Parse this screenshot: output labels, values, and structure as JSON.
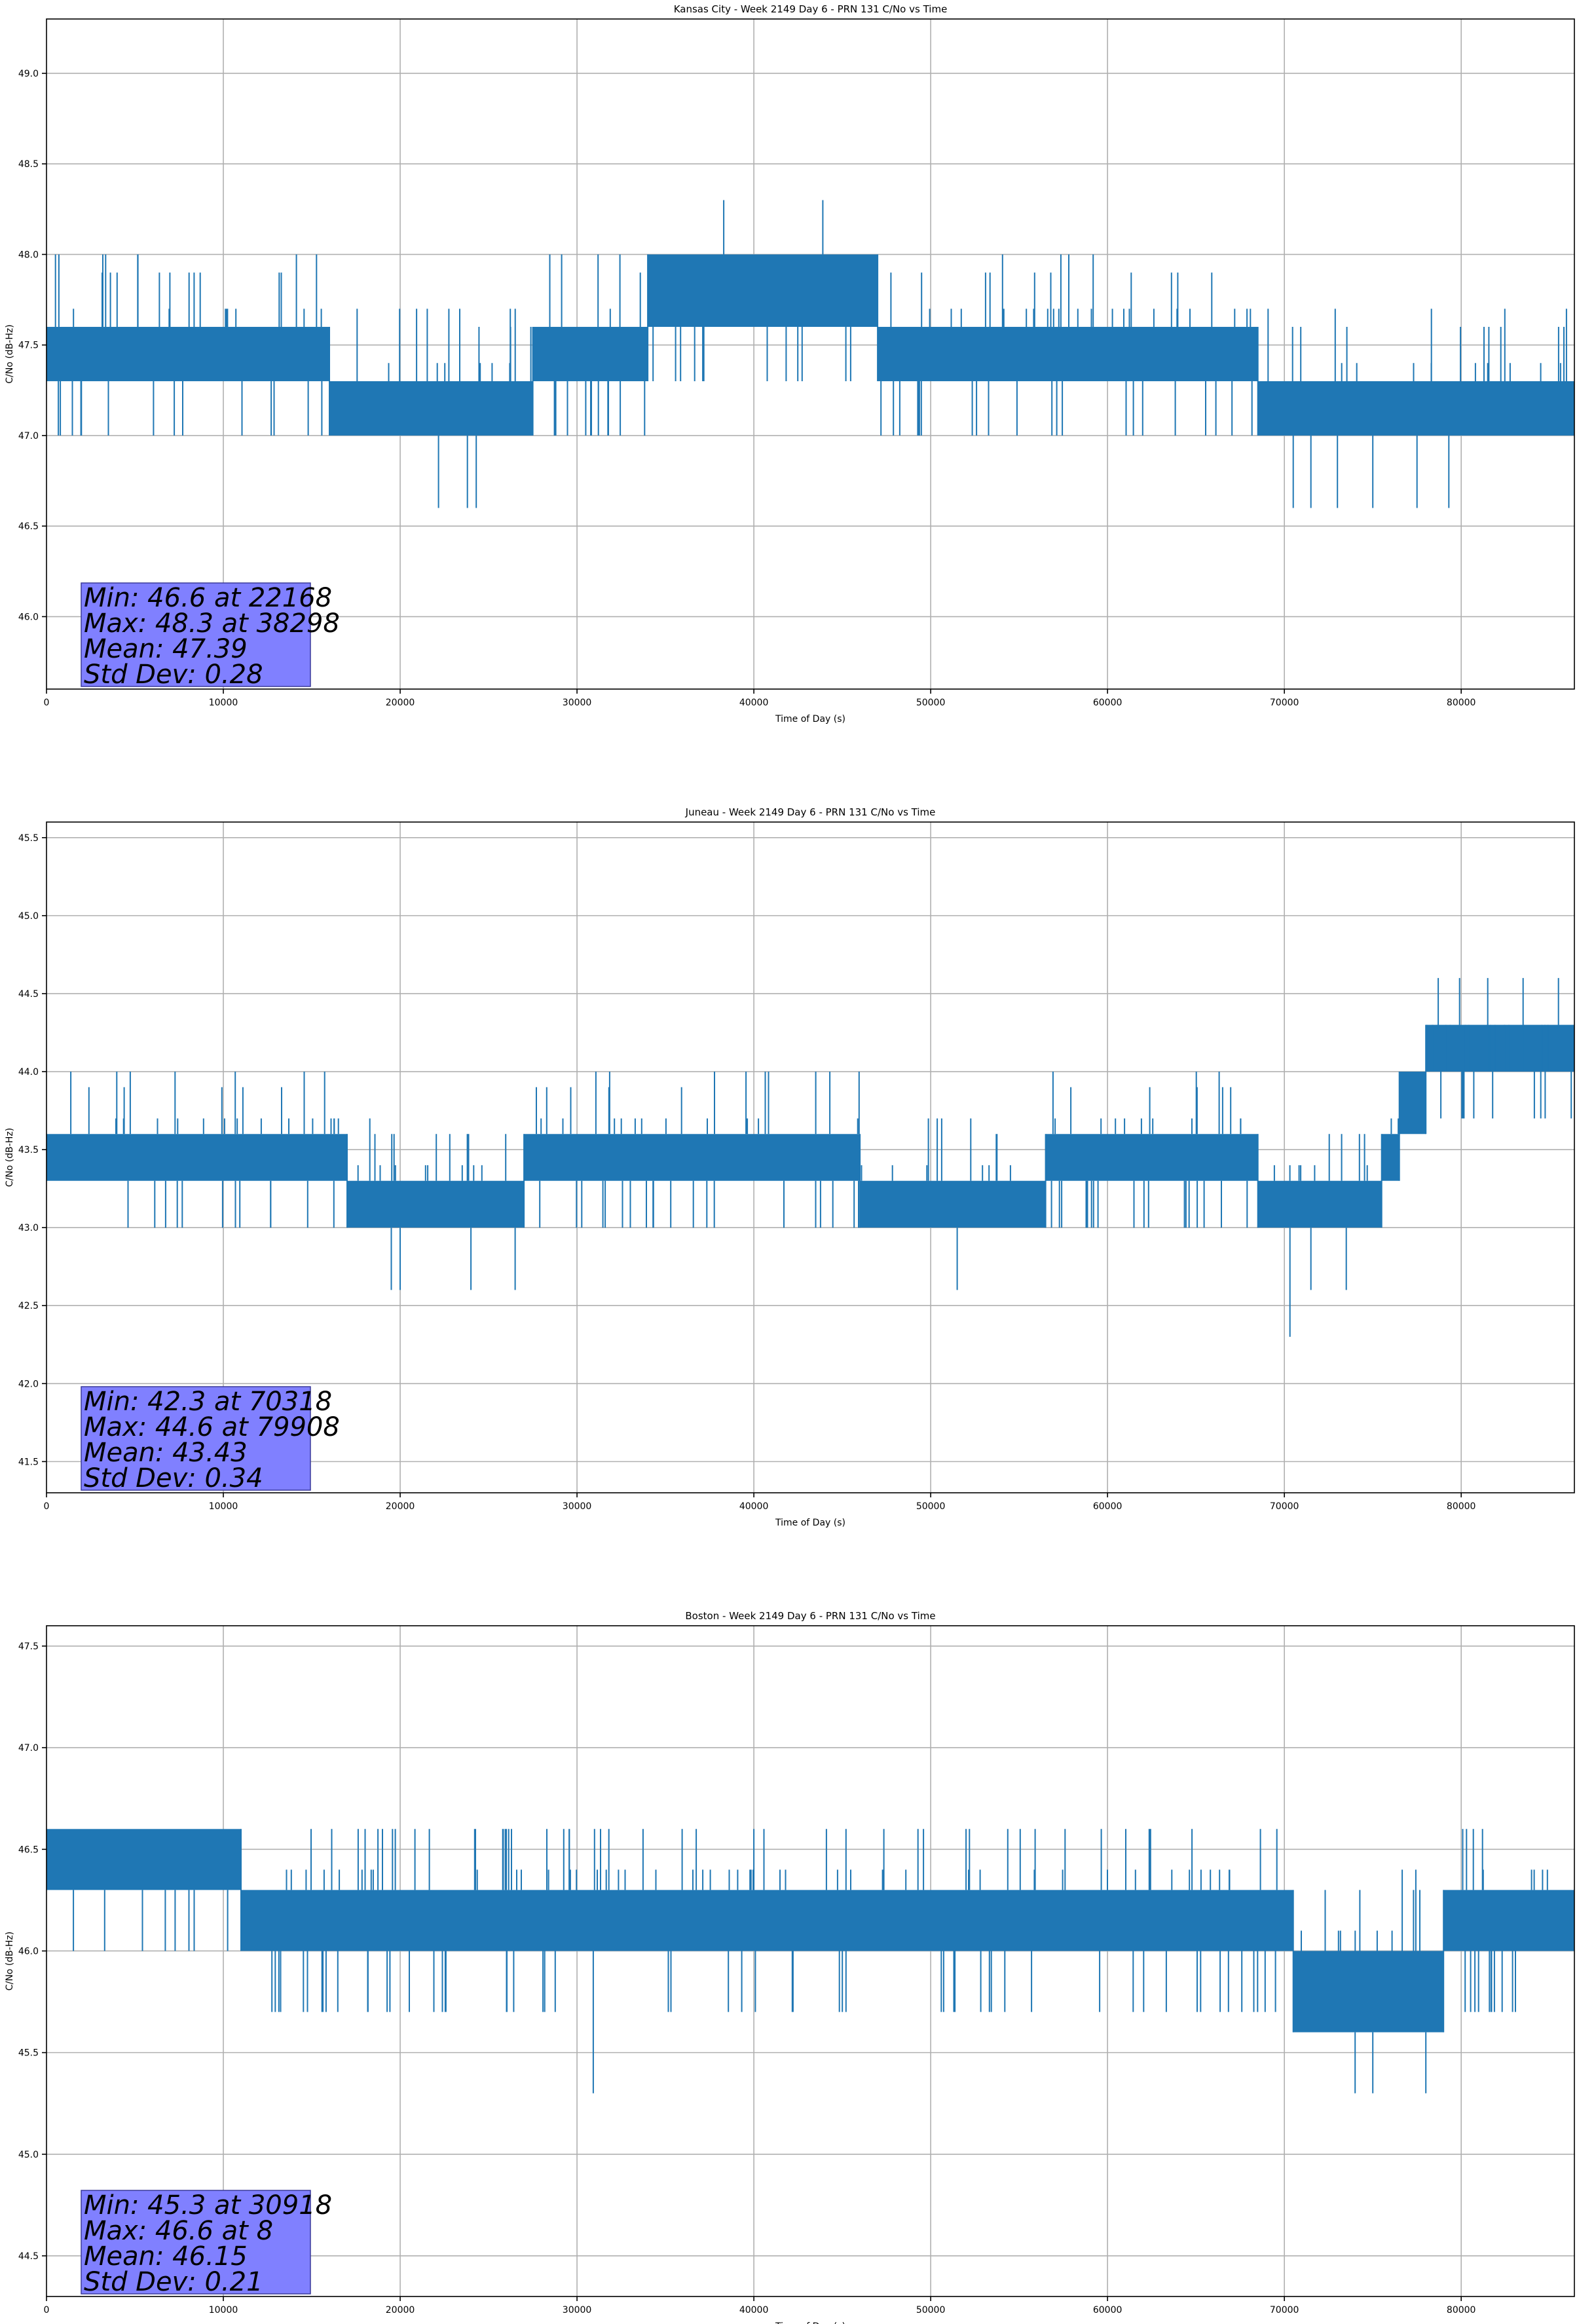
{
  "chart_data": [
    {
      "type": "line",
      "title": "Kansas City - Week 2149 Day 6 - PRN 131 C/No vs Time",
      "xlabel": "Time of Day (s)",
      "ylabel": "C/No (dB-Hz)",
      "xlim": [
        0,
        86400
      ],
      "ylim": [
        45.6,
        49.3
      ],
      "xticks": [
        0,
        10000,
        20000,
        30000,
        40000,
        50000,
        60000,
        70000,
        80000
      ],
      "yticks": [
        46.0,
        46.5,
        47.0,
        47.5,
        48.0,
        48.5,
        49.0
      ],
      "grid": true,
      "series": [
        {
          "color": "#1f77b4",
          "segments": [
            {
              "x0": 0,
              "x1": 16000,
              "lo": 47.3,
              "hi": 47.6
            },
            {
              "x0": 16000,
              "x1": 27500,
              "lo": 47.0,
              "hi": 47.3
            },
            {
              "x0": 27500,
              "x1": 34000,
              "lo": 47.3,
              "hi": 47.6
            },
            {
              "x0": 34000,
              "x1": 47000,
              "lo": 47.6,
              "hi": 48.0
            },
            {
              "x0": 47000,
              "x1": 68500,
              "lo": 47.3,
              "hi": 47.6
            },
            {
              "x0": 68500,
              "x1": 86400,
              "lo": 47.0,
              "hi": 47.3
            }
          ],
          "noise_range": [
            47.0,
            48.0
          ],
          "dips": [
            22168,
            23800,
            24300,
            70500,
            71500,
            73000,
            75000,
            77500,
            79300
          ],
          "dip_values": [
            46.6,
            46.6,
            46.6,
            46.6,
            46.6,
            46.6,
            46.6,
            46.6,
            46.6
          ],
          "spikes": [
            38298,
            43900
          ],
          "spike_values": [
            48.3,
            48.3
          ]
        }
      ],
      "stats": {
        "min": "Min: 46.6 at 22168",
        "max": "Max: 48.3 at 38298",
        "mean": "Mean: 47.39",
        "std": "Std Dev: 0.28"
      }
    },
    {
      "type": "line",
      "title": "Juneau - Week 2149 Day 6 - PRN 131 C/No vs Time",
      "xlabel": "Time of Day (s)",
      "ylabel": "C/No (dB-Hz)",
      "xlim": [
        0,
        86400
      ],
      "ylim": [
        41.3,
        45.6
      ],
      "xticks": [
        0,
        10000,
        20000,
        30000,
        40000,
        50000,
        60000,
        70000,
        80000
      ],
      "yticks": [
        41.5,
        42.0,
        42.5,
        43.0,
        43.5,
        44.0,
        44.5,
        45.0,
        45.5
      ],
      "grid": true,
      "series": [
        {
          "color": "#1f77b4",
          "segments": [
            {
              "x0": 0,
              "x1": 17000,
              "lo": 43.3,
              "hi": 43.6
            },
            {
              "x0": 17000,
              "x1": 27000,
              "lo": 43.0,
              "hi": 43.3
            },
            {
              "x0": 27000,
              "x1": 46000,
              "lo": 43.3,
              "hi": 43.6
            },
            {
              "x0": 46000,
              "x1": 56500,
              "lo": 43.0,
              "hi": 43.3
            },
            {
              "x0": 56500,
              "x1": 68500,
              "lo": 43.3,
              "hi": 43.6
            },
            {
              "x0": 68500,
              "x1": 75500,
              "lo": 43.0,
              "hi": 43.3
            },
            {
              "x0": 75500,
              "x1": 76500,
              "lo": 43.3,
              "hi": 43.6
            },
            {
              "x0": 76500,
              "x1": 78000,
              "lo": 43.6,
              "hi": 44.0
            },
            {
              "x0": 78000,
              "x1": 86400,
              "lo": 44.0,
              "hi": 44.3
            }
          ],
          "noise_range": [
            43.0,
            44.0
          ],
          "dips": [
            19500,
            20000,
            24000,
            26500,
            51500,
            70318,
            71500,
            73500
          ],
          "dip_values": [
            42.6,
            42.6,
            42.6,
            42.6,
            42.6,
            42.3,
            42.6,
            42.6
          ],
          "spikes": [
            78700,
            79908,
            81500,
            83500,
            85500
          ],
          "spike_values": [
            44.6,
            44.6,
            44.6,
            44.6,
            44.6
          ]
        }
      ],
      "stats": {
        "min": "Min: 42.3 at 70318",
        "max": "Max: 44.6 at 79908",
        "mean": "Mean: 43.43",
        "std": "Std Dev: 0.34"
      }
    },
    {
      "type": "line",
      "title": "Boston - Week 2149 Day 6 - PRN 131 C/No vs Time",
      "xlabel": "Time of Day (s)",
      "ylabel": "C/No (dB-Hz)",
      "xlim": [
        0,
        86400
      ],
      "ylim": [
        44.3,
        47.6
      ],
      "xticks": [
        0,
        10000,
        20000,
        30000,
        40000,
        50000,
        60000,
        70000,
        80000
      ],
      "yticks": [
        44.5,
        45.0,
        45.5,
        46.0,
        46.5,
        47.0,
        47.5
      ],
      "grid": true,
      "series": [
        {
          "color": "#1f77b4",
          "segments": [
            {
              "x0": 0,
              "x1": 11000,
              "lo": 46.3,
              "hi": 46.6
            },
            {
              "x0": 11000,
              "x1": 70500,
              "lo": 46.0,
              "hi": 46.3
            },
            {
              "x0": 70500,
              "x1": 79000,
              "lo": 45.6,
              "hi": 46.0
            },
            {
              "x0": 79000,
              "x1": 86400,
              "lo": 46.0,
              "hi": 46.3
            }
          ],
          "noise_range": [
            45.6,
            46.6
          ],
          "dips": [
            30918,
            74000,
            75000,
            78000
          ],
          "dip_values": [
            45.3,
            45.3,
            45.3,
            45.3
          ],
          "spikes": [
            8,
            19000,
            26000,
            40000,
            52000
          ],
          "spike_values": [
            46.6,
            46.6,
            46.6,
            46.6,
            46.6
          ]
        }
      ],
      "stats": {
        "min": "Min: 45.3 at 30918",
        "max": "Max: 46.6 at 8",
        "mean": "Mean: 46.15",
        "std": "Std Dev: 0.21"
      }
    }
  ]
}
